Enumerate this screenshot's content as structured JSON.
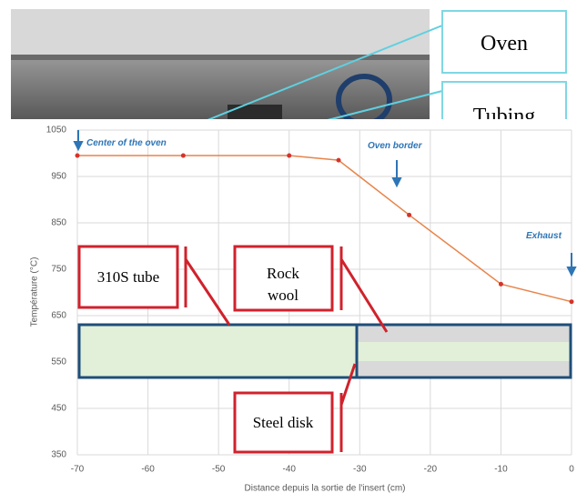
{
  "photo_labels": [
    "Oven",
    "Tubing"
  ],
  "chart_data": {
    "type": "line",
    "x": [
      -70,
      -55,
      -40,
      -33,
      -23,
      -10,
      0
    ],
    "values": [
      995,
      995,
      995,
      985,
      867,
      718,
      680
    ],
    "color": "#e8844a",
    "marker_color": "#d2352b",
    "xlim": [
      -70,
      0
    ],
    "xticks": [
      -70,
      -60,
      -50,
      -40,
      -30,
      -20,
      -10,
      0
    ],
    "ylim": [
      350,
      1050
    ],
    "yticks": [
      350,
      450,
      550,
      650,
      750,
      850,
      950,
      1050
    ],
    "grid": true,
    "xlabel": "Distance depuis la sortie de l'insert (cm)",
    "ylabel": "Température (°C)",
    "annotations": [
      "Center of the oven",
      "Oven border",
      "Exhaust",
      "310S tube",
      "Rock wool",
      "Steel disk"
    ]
  }
}
